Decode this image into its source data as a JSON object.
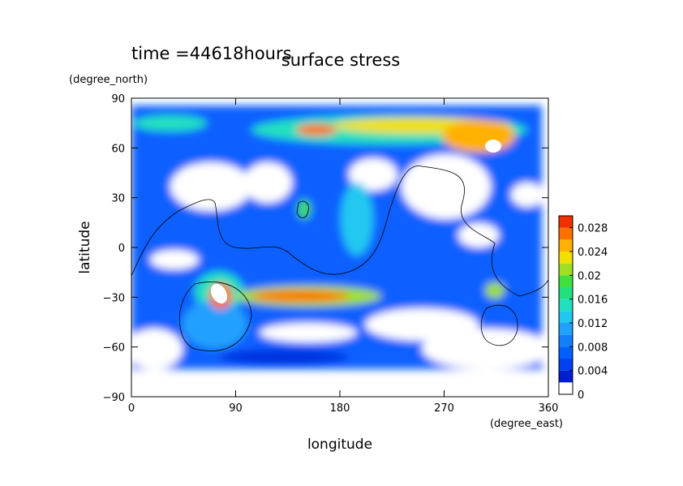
{
  "chart_data": {
    "type": "contour",
    "time_label": "time =44618hours",
    "title": "surface stress",
    "y_units": "(degree_north)",
    "ylabel": "latitude",
    "x_units": "(degree_east)",
    "xlabel": "longitude",
    "xlim": [
      0,
      360
    ],
    "xticks": [
      0,
      90,
      180,
      270,
      360
    ],
    "ylim": [
      -90,
      90
    ],
    "yticks": [
      {
        "value": -90,
        "label": "−90"
      },
      {
        "value": -60,
        "label": "−60"
      },
      {
        "value": -30,
        "label": "−30"
      },
      0,
      30,
      60,
      90
    ],
    "colorbar": {
      "lim": [
        0,
        0.03
      ],
      "ticks": [
        0,
        0.004,
        0.008,
        0.012,
        0.016,
        0.02,
        0.024,
        0.028
      ],
      "colors": [
        "#ffffff",
        "#0020d0",
        "#0040f0",
        "#0060ff",
        "#1080ff",
        "#20a0ff",
        "#20c8f0",
        "#20e0c0",
        "#20e080",
        "#40e040",
        "#a0e020",
        "#f0e000",
        "#ffb000",
        "#ff7000",
        "#f03000"
      ]
    }
  }
}
